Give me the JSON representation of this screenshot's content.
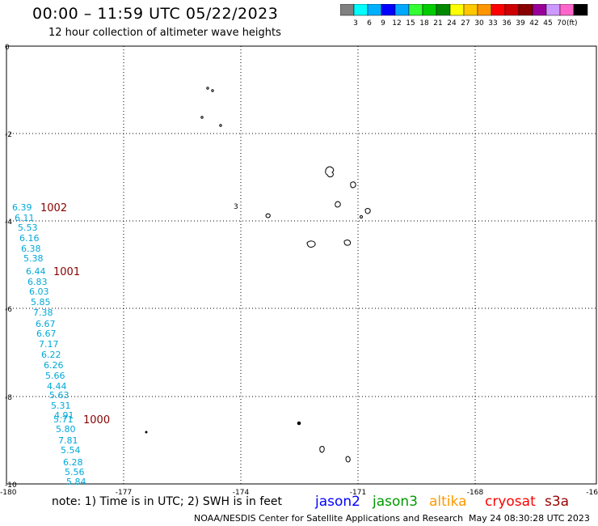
{
  "header": {
    "title": "00:00 – 11:59 UTC 05/22/2023",
    "subtitle": "12 hour collection of altimeter wave heights"
  },
  "colorbar": {
    "colors": [
      "#808080",
      "#00ffff",
      "#00b0ff",
      "#0000ff",
      "#00a8ff",
      "#33ff33",
      "#00cc00",
      "#008800",
      "#ffff00",
      "#ffc800",
      "#ff9600",
      "#ff0000",
      "#cc0000",
      "#880000",
      "#990099",
      "#cc99ff",
      "#ff66cc",
      "#000000"
    ],
    "labels": [
      "3",
      "6",
      "9",
      "12",
      "15",
      "18",
      "21",
      "24",
      "27",
      "30",
      "33",
      "36",
      "39",
      "42",
      "45",
      "70"
    ],
    "unit": "(ft)"
  },
  "map": {
    "x_ticks": [
      "-180",
      "-177",
      "-174",
      "-171",
      "-168",
      "-16"
    ],
    "y_ticks": [
      "0",
      "-2",
      "-4",
      "-6",
      "-8",
      "-10"
    ],
    "swh_labels": [
      "6.39",
      "6.11",
      "5.53",
      "6.16",
      "6.38",
      "5.38",
      "6.44",
      "6.83",
      "6.03",
      "5.85",
      "7.38",
      "6.67",
      "6.67",
      "7.17",
      "6.22",
      "6.26",
      "5.66",
      "4.44",
      "5.63",
      "5.31",
      "4.91",
      "5.71",
      "5.80",
      "7.81",
      "5.54",
      "6.28",
      "5.56",
      "5.84"
    ],
    "pressure_labels": [
      "1002",
      "1001",
      "1000"
    ],
    "contour_labels": [
      "3"
    ],
    "colors": {
      "swh": "#00a8d8",
      "pressure": "#880000",
      "grid": "#000000"
    }
  },
  "footer": {
    "note": "note: 1) Time is in UTC; 2) SWH is in feet",
    "satellites": [
      {
        "name": "jason2",
        "color": "#0000ff"
      },
      {
        "name": "jason3",
        "color": "#009900"
      },
      {
        "name": "altika",
        "color": "#ff9900"
      },
      {
        "name": "cryosat",
        "color": "#ff0000"
      },
      {
        "name": "s3a",
        "color": "#990000"
      }
    ],
    "credit": "NOAA/NESDIS Center for Satellite Applications and Research",
    "timestamp": "May 24 08:30:28 UTC 2023"
  }
}
